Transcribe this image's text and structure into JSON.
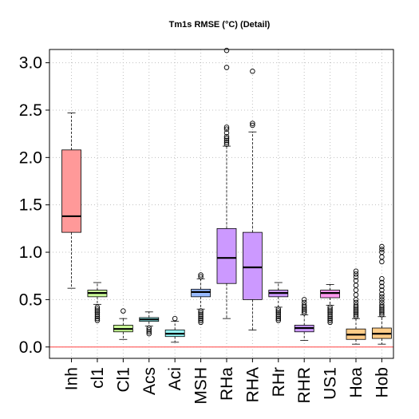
{
  "chart_data": {
    "type": "boxplot",
    "title": "Tm1s RMSE (°C) (Detail)",
    "xlabel": "",
    "ylabel": "",
    "ylim": [
      -0.12,
      3.14
    ],
    "yticks": [
      "0.0",
      "0.5",
      "1.0",
      "1.5",
      "2.0",
      "2.5",
      "3.0"
    ],
    "grid": true,
    "reference_line": {
      "y": 0,
      "color": "#ff6666"
    },
    "categories": [
      "Inh",
      "cl1",
      "Cl1",
      "Acs",
      "Aci",
      "MSH",
      "RHa",
      "RHA",
      "RHr",
      "RHR",
      "US1",
      "Hoa",
      "Hob"
    ],
    "series": [
      {
        "category": "Inh",
        "color": "#ff9999",
        "whisker_low": 0.62,
        "q1": 1.21,
        "median": 1.38,
        "q3": 2.08,
        "whisker_high": 2.47,
        "outliers": []
      },
      {
        "category": "cl1",
        "color": "#ccff99",
        "whisker_low": 0.45,
        "q1": 0.53,
        "median": 0.57,
        "q3": 0.6,
        "whisker_high": 0.68,
        "outliers": [
          0.28,
          0.3,
          0.32,
          0.34,
          0.36,
          0.38,
          0.4,
          0.42
        ]
      },
      {
        "category": "Cl1",
        "color": "#ccff99",
        "whisker_low": 0.08,
        "q1": 0.16,
        "median": 0.19,
        "q3": 0.23,
        "whisker_high": 0.3,
        "outliers": [
          0.38
        ]
      },
      {
        "category": "Acs",
        "color": "#99ffff",
        "whisker_low": 0.22,
        "q1": 0.27,
        "median": 0.29,
        "q3": 0.31,
        "whisker_high": 0.37,
        "outliers": [
          0.14,
          0.16,
          0.18,
          0.2
        ]
      },
      {
        "category": "Aci",
        "color": "#99ffff",
        "whisker_low": 0.05,
        "q1": 0.11,
        "median": 0.14,
        "q3": 0.18,
        "whisker_high": 0.27,
        "outliers": [
          0.3
        ]
      },
      {
        "category": "MSH",
        "color": "#99bbff",
        "whisker_low": 0.4,
        "q1": 0.53,
        "median": 0.58,
        "q3": 0.61,
        "whisker_high": 0.72,
        "outliers": [
          0.26,
          0.28,
          0.3,
          0.32,
          0.34,
          0.36,
          0.38,
          0.74,
          0.76
        ]
      },
      {
        "category": "RHa",
        "color": "#cc99ff",
        "whisker_low": 0.3,
        "q1": 0.67,
        "median": 0.94,
        "q3": 1.25,
        "whisker_high": 2.12,
        "outliers": [
          2.14,
          2.16,
          2.18,
          2.2,
          2.22,
          2.26,
          2.3,
          2.32,
          2.95,
          3.13
        ]
      },
      {
        "category": "RHA",
        "color": "#cc99ff",
        "whisker_low": 0.18,
        "q1": 0.5,
        "median": 0.84,
        "q3": 1.21,
        "whisker_high": 2.27,
        "outliers": [
          2.34,
          2.36,
          2.91
        ]
      },
      {
        "category": "RHr",
        "color": "#cc99ff",
        "whisker_low": 0.42,
        "q1": 0.53,
        "median": 0.57,
        "q3": 0.6,
        "whisker_high": 0.68,
        "outliers": [
          0.28,
          0.3,
          0.32,
          0.34,
          0.36,
          0.38,
          0.4
        ]
      },
      {
        "category": "RHR",
        "color": "#cc99ff",
        "whisker_low": 0.07,
        "q1": 0.16,
        "median": 0.2,
        "q3": 0.23,
        "whisker_high": 0.34,
        "outliers": [
          0.36,
          0.38,
          0.4,
          0.42,
          0.44,
          0.47,
          0.5
        ]
      },
      {
        "category": "US1",
        "color": "#ff99ee",
        "whisker_low": 0.44,
        "q1": 0.52,
        "median": 0.57,
        "q3": 0.6,
        "whisker_high": 0.66,
        "outliers": [
          0.26,
          0.28,
          0.3,
          0.32,
          0.34,
          0.36,
          0.38,
          0.4,
          0.42
        ]
      },
      {
        "category": "Hoa",
        "color": "#ffcc88",
        "whisker_low": 0.03,
        "q1": 0.08,
        "median": 0.13,
        "q3": 0.19,
        "whisker_high": 0.3,
        "outliers": [
          0.32,
          0.34,
          0.36,
          0.38,
          0.4,
          0.42,
          0.44,
          0.47,
          0.5,
          0.55,
          0.6,
          0.65,
          0.7,
          0.74,
          0.77,
          0.8
        ]
      },
      {
        "category": "Hob",
        "color": "#ffcc88",
        "whisker_low": 0.03,
        "q1": 0.09,
        "median": 0.14,
        "q3": 0.2,
        "whisker_high": 0.32,
        "outliers": [
          0.34,
          0.36,
          0.38,
          0.4,
          0.42,
          0.44,
          0.47,
          0.5,
          0.53,
          0.56,
          0.6,
          0.64,
          0.68,
          0.72,
          0.9,
          0.95,
          1.0,
          1.03,
          1.06
        ]
      }
    ]
  }
}
